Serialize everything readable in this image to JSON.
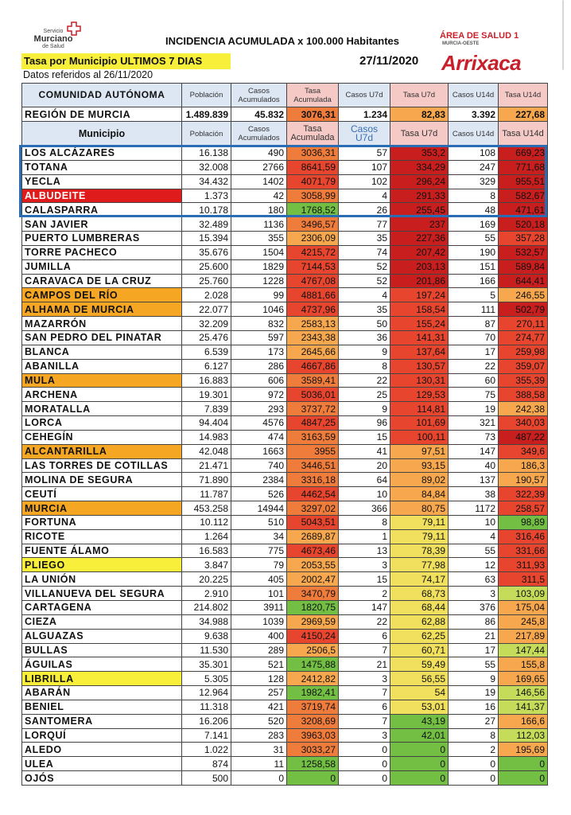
{
  "header": {
    "logo": [
      "Servicio",
      "Murciano",
      "de Salud"
    ],
    "title": "INCIDENCIA ACUMULADA x 100.000 Habitantes",
    "subtitle": "Tasa por Municipio ULTIMOS 7 DIAS",
    "date": "27/11/2020",
    "note": "Datos referidos al 26/11/2020",
    "area": "ÁREA DE SALUD 1",
    "area_sub": "MURCIA-OESTE",
    "brand": "Arrixaca"
  },
  "table": {
    "palette": {
      "R": "#c81e1e",
      "r": "#e8452e",
      "o": "#f07c3c",
      "l": "#f7a84f",
      "y": "#f0e05e",
      "k": "#c5dc5a",
      "g": "#72bf44"
    },
    "region_header": [
      "COMUNIDAD AUTÓNOMA",
      "Población",
      "Casos Acumulados",
      "Tasa Acumulada",
      "Casos U7d",
      "Tasa U7d",
      "Casos U14d",
      "Tasa U14d"
    ],
    "region_row": {
      "cells": [
        "REGIÓN DE MURCIA",
        "1.489.839",
        "45.832",
        "3076,31",
        "1.234",
        "82,83",
        "3.392",
        "227,68"
      ],
      "colors": "oll"
    },
    "columns": [
      "Municipio",
      "Población",
      "Casos Acumulados",
      "Tasa Acumulada",
      "Casos U7d",
      "Tasa U7d",
      "Casos U14d",
      "Tasa U14d"
    ],
    "rows": [
      {
        "cells": [
          "LOS ALCÁZARES",
          "16.138",
          "490",
          "3036,31",
          "57",
          "353,2",
          "108",
          "669,23"
        ],
        "colors": "oRR"
      },
      {
        "cells": [
          "TOTANA",
          "32.008",
          "2766",
          "8641,59",
          "107",
          "334,29",
          "247",
          "771,68"
        ],
        "colors": "rRR"
      },
      {
        "cells": [
          "YECLA",
          "34.432",
          "1402",
          "4071,79",
          "102",
          "296,24",
          "329",
          "955,51"
        ],
        "colors": "rRR"
      },
      {
        "cells": [
          "ALBUDEITE",
          "1.373",
          "42",
          "3058,99",
          "4",
          "291,33",
          "8",
          "582,67"
        ],
        "colors": "oRR",
        "highlight": "#e01b1b",
        "highlight_text": "#ffffff"
      },
      {
        "cells": [
          "CALASPARRA",
          "10.178",
          "180",
          "1768,52",
          "26",
          "255,45",
          "48",
          "471,61"
        ],
        "colors": "gRR"
      },
      {
        "cells": [
          "SAN JAVIER",
          "32.489",
          "1136",
          "3496,57",
          "77",
          "237",
          "169",
          "520,18"
        ],
        "colors": "oRR"
      },
      {
        "cells": [
          "PUERTO LUMBRERAS",
          "15.394",
          "355",
          "2306,09",
          "35",
          "227,36",
          "55",
          "357,28"
        ],
        "colors": "lRr"
      },
      {
        "cells": [
          "TORRE PACHECO",
          "35.676",
          "1504",
          "4215,72",
          "74",
          "207,42",
          "190",
          "532,57"
        ],
        "colors": "rRR"
      },
      {
        "cells": [
          "JUMILLA",
          "25.600",
          "1829",
          "7144,53",
          "52",
          "203,13",
          "151",
          "589,84"
        ],
        "colors": "rRR"
      },
      {
        "cells": [
          "CARAVACA DE LA CRUZ",
          "25.760",
          "1228",
          "4767,08",
          "52",
          "201,86",
          "166",
          "644,41"
        ],
        "colors": "rRR"
      },
      {
        "cells": [
          "CAMPOS DEL RÍO",
          "2.028",
          "99",
          "4881,66",
          "4",
          "197,24",
          "5",
          "246,55"
        ],
        "colors": "rrl",
        "highlight": "#f5a623"
      },
      {
        "cells": [
          "ALHAMA DE MURCIA",
          "22.077",
          "1046",
          "4737,96",
          "35",
          "158,54",
          "111",
          "502,79"
        ],
        "colors": "rrR",
        "highlight": "#f5a623"
      },
      {
        "cells": [
          "MAZARRÓN",
          "32.209",
          "832",
          "2583,13",
          "50",
          "155,24",
          "87",
          "270,11"
        ],
        "colors": "lrr"
      },
      {
        "cells": [
          "SAN PEDRO DEL PINATAR",
          "25.476",
          "597",
          "2343,38",
          "36",
          "141,31",
          "70",
          "274,77"
        ],
        "colors": "lrr"
      },
      {
        "cells": [
          "BLANCA",
          "6.539",
          "173",
          "2645,66",
          "9",
          "137,64",
          "17",
          "259,98"
        ],
        "colors": "lrr"
      },
      {
        "cells": [
          "ABANILLA",
          "6.127",
          "286",
          "4667,86",
          "8",
          "130,57",
          "22",
          "359,07"
        ],
        "colors": "rrr"
      },
      {
        "cells": [
          "MULA",
          "16.883",
          "606",
          "3589,41",
          "22",
          "130,31",
          "60",
          "355,39"
        ],
        "colors": "orr",
        "highlight": "#f5a623"
      },
      {
        "cells": [
          "ARCHENA",
          "19.301",
          "972",
          "5036,01",
          "25",
          "129,53",
          "75",
          "388,58"
        ],
        "colors": "rrr"
      },
      {
        "cells": [
          "MORATALLA",
          "7.839",
          "293",
          "3737,72",
          "9",
          "114,81",
          "19",
          "242,38"
        ],
        "colors": "orl"
      },
      {
        "cells": [
          "LORCA",
          "94.404",
          "4576",
          "4847,25",
          "96",
          "101,69",
          "321",
          "340,03"
        ],
        "colors": "rrr"
      },
      {
        "cells": [
          "CEHEGÍN",
          "14.983",
          "474",
          "3163,59",
          "15",
          "100,11",
          "73",
          "487,22"
        ],
        "colors": "orR"
      },
      {
        "cells": [
          "ALCANTARILLA",
          "42.048",
          "1663",
          "3955",
          "41",
          "97,51",
          "147",
          "349,6"
        ],
        "colors": "olr",
        "highlight": "#f5a623"
      },
      {
        "cells": [
          "LAS TORRES DE COTILLAS",
          "21.471",
          "740",
          "3446,51",
          "20",
          "93,15",
          "40",
          "186,3"
        ],
        "colors": "oll"
      },
      {
        "cells": [
          "MOLINA DE SEGURA",
          "71.890",
          "2384",
          "3316,18",
          "64",
          "89,02",
          "137",
          "190,57"
        ],
        "colors": "oll"
      },
      {
        "cells": [
          "CEUTÍ",
          "11.787",
          "526",
          "4462,54",
          "10",
          "84,84",
          "38",
          "322,39"
        ],
        "colors": "rlr"
      },
      {
        "cells": [
          "MURCIA",
          "453.258",
          "14944",
          "3297,02",
          "366",
          "80,75",
          "1172",
          "258,57"
        ],
        "colors": "olr",
        "highlight": "#f5a623"
      },
      {
        "cells": [
          "FORTUNA",
          "10.112",
          "510",
          "5043,51",
          "8",
          "79,11",
          "10",
          "98,89"
        ],
        "colors": "ryg"
      },
      {
        "cells": [
          "RICOTE",
          "1.264",
          "34",
          "2689,87",
          "1",
          "79,11",
          "4",
          "316,46"
        ],
        "colors": "lyr"
      },
      {
        "cells": [
          "FUENTE ÁLAMO",
          "16.583",
          "775",
          "4673,46",
          "13",
          "78,39",
          "55",
          "331,66"
        ],
        "colors": "ryr"
      },
      {
        "cells": [
          "PLIEGO",
          "3.847",
          "79",
          "2053,55",
          "3",
          "77,98",
          "12",
          "311,93"
        ],
        "colors": "lyr",
        "highlight": "#f7ef3a"
      },
      {
        "cells": [
          "LA UNIÓN",
          "20.225",
          "405",
          "2002,47",
          "15",
          "74,17",
          "63",
          "311,5"
        ],
        "colors": "lyr"
      },
      {
        "cells": [
          "VILLANUEVA DEL SEGURA",
          "2.910",
          "101",
          "3470,79",
          "2",
          "68,73",
          "3",
          "103,09"
        ],
        "colors": "oyk"
      },
      {
        "cells": [
          "CARTAGENA",
          "214.802",
          "3911",
          "1820,75",
          "147",
          "68,44",
          "376",
          "175,04"
        ],
        "colors": "gyl"
      },
      {
        "cells": [
          "CIEZA",
          "34.988",
          "1039",
          "2969,59",
          "22",
          "62,88",
          "86",
          "245,8"
        ],
        "colors": "lyl"
      },
      {
        "cells": [
          "ALGUAZAS",
          "9.638",
          "400",
          "4150,24",
          "6",
          "62,25",
          "21",
          "217,89"
        ],
        "colors": "ryl"
      },
      {
        "cells": [
          "BULLAS",
          "11.530",
          "289",
          "2506,5",
          "7",
          "60,71",
          "17",
          "147,44"
        ],
        "colors": "lyk"
      },
      {
        "cells": [
          "ÁGUILAS",
          "35.301",
          "521",
          "1475,88",
          "21",
          "59,49",
          "55",
          "155,8"
        ],
        "colors": "gyl"
      },
      {
        "cells": [
          "LIBRILLA",
          "5.305",
          "128",
          "2412,82",
          "3",
          "56,55",
          "9",
          "169,65"
        ],
        "colors": "lyl",
        "highlight": "#f7ef3a"
      },
      {
        "cells": [
          "ABARÁN",
          "12.964",
          "257",
          "1982,41",
          "7",
          "54",
          "19",
          "146,56"
        ],
        "colors": "gyk"
      },
      {
        "cells": [
          "BENIEL",
          "11.318",
          "421",
          "3719,74",
          "6",
          "53,01",
          "16",
          "141,37"
        ],
        "colors": "oyk"
      },
      {
        "cells": [
          "SANTOMERA",
          "16.206",
          "520",
          "3208,69",
          "7",
          "43,19",
          "27",
          "166,6"
        ],
        "colors": "ogl"
      },
      {
        "cells": [
          "LORQUÍ",
          "7.141",
          "283",
          "3963,03",
          "3",
          "42,01",
          "8",
          "112,03"
        ],
        "colors": "ogk"
      },
      {
        "cells": [
          "ALEDO",
          "1.022",
          "31",
          "3033,27",
          "0",
          "0",
          "2",
          "195,69"
        ],
        "colors": "ogl"
      },
      {
        "cells": [
          "ULEA",
          "874",
          "11",
          "1258,58",
          "0",
          "0",
          "0",
          "0"
        ],
        "colors": "ggg"
      },
      {
        "cells": [
          "OJÓS",
          "500",
          "0",
          "0",
          "0",
          "0",
          "0",
          "0"
        ],
        "colors": "ggg"
      }
    ]
  }
}
